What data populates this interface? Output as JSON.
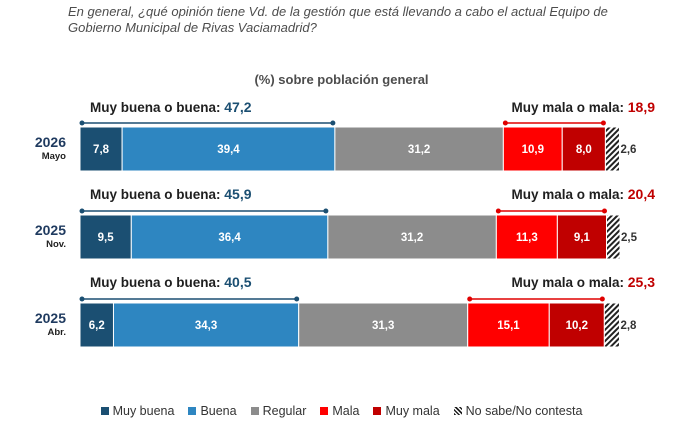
{
  "question": "En general, ¿qué opinión tiene Vd. de la gestión que está llevando a cabo el actual Equipo de Gobierno Municipal de Rivas Vaciamadrid?",
  "chart_data": {
    "type": "bar",
    "orientation": "horizontal-stacked",
    "subtitle": "(%) sobre población general",
    "categories": [
      {
        "year": "2026",
        "month": "Mayo"
      },
      {
        "year": "2025",
        "month": "Nov."
      },
      {
        "year": "2025",
        "month": "Abr."
      }
    ],
    "series": [
      {
        "name": "Muy buena",
        "color": "#1b4f72",
        "values": [
          7.8,
          9.5,
          6.2
        ],
        "labels": [
          "7,8",
          "9,5",
          "6,2"
        ]
      },
      {
        "name": "Buena",
        "color": "#2e86c1",
        "values": [
          39.4,
          36.4,
          34.3
        ],
        "labels": [
          "39,4",
          "36,4",
          "34,3"
        ]
      },
      {
        "name": "Regular",
        "color": "#8c8c8c",
        "values": [
          31.2,
          31.2,
          31.3
        ],
        "labels": [
          "31,2",
          "31,2",
          "31,3"
        ]
      },
      {
        "name": "Mala",
        "color": "#ff0000",
        "values": [
          10.9,
          11.3,
          15.1
        ],
        "labels": [
          "10,9",
          "11,3",
          "15,1"
        ]
      },
      {
        "name": "Muy mala",
        "color": "#c00000",
        "values": [
          8.0,
          9.1,
          10.2
        ],
        "labels": [
          "8,0",
          "9,1",
          "10,2"
        ]
      },
      {
        "name": "No sabe/No contesta",
        "color": "hatch",
        "values": [
          2.6,
          2.5,
          2.8
        ],
        "labels": [
          "2,6",
          "2,5",
          "2,8"
        ]
      }
    ],
    "groups": {
      "positive": {
        "label": "Muy buena o buena:",
        "color": "#1b4f72",
        "values": [
          "47,2",
          "45,9",
          "40,5"
        ]
      },
      "negative": {
        "label": "Muy mala o mala:",
        "color": "#c00000",
        "values": [
          "18,9",
          "20,4",
          "25,3"
        ]
      }
    },
    "legend_position": "bottom",
    "grid": false
  }
}
